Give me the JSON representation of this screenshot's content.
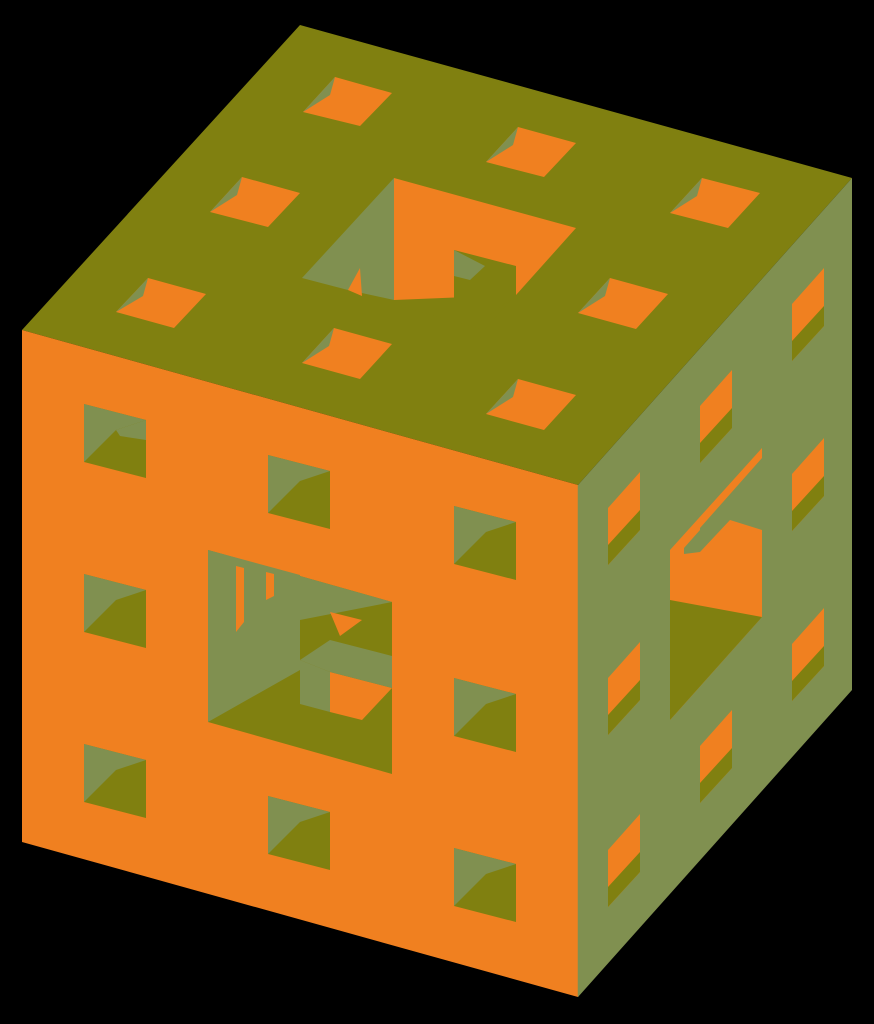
{
  "image": {
    "subject": "menger-sponge-cube",
    "colors": {
      "background": "#000000",
      "front_face": "#F08020",
      "top_face": "#808010",
      "side_face": "#809050",
      "hole_dark": "#808010",
      "hole_light": "#809050",
      "hole_orange": "#F08020"
    }
  }
}
